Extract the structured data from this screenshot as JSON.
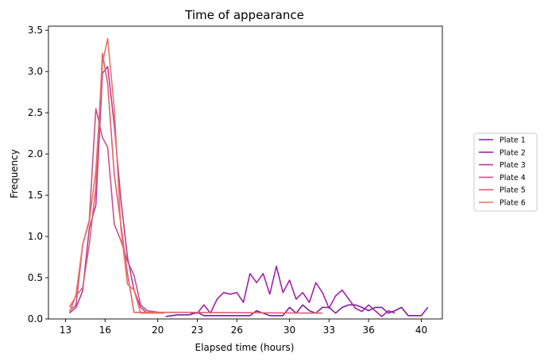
{
  "chart_data": {
    "type": "line",
    "title": "Time of appearance",
    "xlabel": "Elapsed time (hours)",
    "ylabel": "Frequency",
    "xlim": [
      11.7,
      41.6
    ],
    "ylim": [
      0,
      3.55
    ],
    "xticks": [
      13,
      16,
      20,
      23,
      26,
      30,
      33,
      36,
      40
    ],
    "yticks": [
      0.0,
      0.5,
      1.0,
      1.5,
      2.0,
      2.5,
      3.0,
      3.5
    ],
    "xtick_labels": [
      "13",
      "16",
      "20",
      "23",
      "26",
      "30",
      "33",
      "36",
      "40"
    ],
    "ytick_labels": [
      "0.0",
      "0.5",
      "1.0",
      "1.5",
      "2.0",
      "2.5",
      "3.0",
      "3.5"
    ],
    "grid": false,
    "legend_position": "right, outside plot",
    "series": [
      {
        "name": "Plate 1",
        "color": "#7e1fa0",
        "x": [
          20.6,
          21.5,
          22.4,
          23.0,
          23.5,
          24.0,
          24.5,
          25.0,
          25.5,
          26.0,
          26.5,
          27.0,
          27.5,
          28.0,
          28.5,
          29.0,
          29.5,
          30.0,
          30.5,
          31.0,
          31.5,
          32.0,
          32.5,
          33.0,
          33.5,
          34.0,
          34.5,
          35.0,
          35.5,
          36.0,
          36.5,
          37.0,
          37.5,
          38.0,
          38.5,
          39.0,
          39.5,
          40.0,
          40.5
        ],
        "y": [
          0.03,
          0.05,
          0.05,
          0.08,
          0.04,
          0.04,
          0.04,
          0.04,
          0.04,
          0.04,
          0.04,
          0.04,
          0.1,
          0.07,
          0.04,
          0.04,
          0.04,
          0.14,
          0.07,
          0.17,
          0.1,
          0.07,
          0.14,
          0.14,
          0.07,
          0.14,
          0.17,
          0.17,
          0.14,
          0.1,
          0.14,
          0.14,
          0.07,
          0.1,
          0.14,
          0.04,
          0.04,
          0.04,
          0.14
        ]
      },
      {
        "name": "Plate 2",
        "color": "#a422a8",
        "x": [
          22.5,
          23.0,
          23.5,
          24.0,
          24.5,
          25.0,
          25.5,
          26.0,
          26.5,
          27.0,
          27.5,
          28.0,
          28.5,
          29.0,
          29.5,
          30.0,
          30.5,
          31.0,
          31.5,
          32.0,
          32.5,
          33.0,
          33.5,
          34.0,
          34.5,
          35.0,
          35.5,
          36.0,
          36.5,
          37.0,
          37.5,
          38.0
        ],
        "y": [
          0.07,
          0.07,
          0.17,
          0.07,
          0.24,
          0.32,
          0.3,
          0.32,
          0.2,
          0.55,
          0.44,
          0.55,
          0.3,
          0.64,
          0.32,
          0.47,
          0.24,
          0.32,
          0.2,
          0.44,
          0.32,
          0.13,
          0.28,
          0.35,
          0.24,
          0.13,
          0.09,
          0.17,
          0.1,
          0.03,
          0.1,
          0.07
        ]
      },
      {
        "name": "Plate 3",
        "color": "#bb3b9a",
        "x": [
          13.3,
          13.8,
          14.3,
          14.8,
          15.3,
          15.8,
          16.2,
          16.7,
          17.2,
          17.7,
          18.2,
          18.7,
          19.2
        ],
        "y": [
          0.07,
          0.14,
          0.34,
          1.1,
          1.38,
          2.98,
          3.06,
          2.35,
          1.45,
          0.75,
          0.35,
          0.14,
          0.07
        ]
      },
      {
        "name": "Plate 4",
        "color": "#cc5090",
        "x": [
          13.3,
          13.8,
          14.3,
          14.8,
          15.3,
          15.8,
          16.2,
          16.7,
          17.2,
          17.7,
          18.2,
          18.7,
          19.2,
          20.5
        ],
        "y": [
          0.1,
          0.17,
          0.9,
          1.2,
          2.55,
          2.2,
          2.08,
          1.15,
          0.95,
          0.7,
          0.53,
          0.17,
          0.1,
          0.07
        ]
      },
      {
        "name": "Plate 5",
        "color": "#dd6070",
        "x": [
          13.3,
          13.8,
          14.3,
          14.8,
          15.3,
          15.8,
          16.2,
          16.7,
          17.2,
          17.7,
          18.2,
          18.7,
          19.2,
          22.0,
          32.5
        ],
        "y": [
          0.14,
          0.28,
          0.38,
          0.9,
          1.6,
          3.22,
          2.85,
          1.75,
          1.15,
          0.55,
          0.08,
          0.08,
          0.08,
          0.08,
          0.07
        ]
      },
      {
        "name": "Plate 6",
        "color": "#e8745e",
        "x": [
          13.3,
          13.8,
          14.3,
          14.8,
          15.3,
          15.8,
          16.2,
          16.7,
          17.2,
          17.7,
          18.2,
          18.7,
          19.2,
          19.8,
          20.5
        ],
        "y": [
          0.07,
          0.3,
          0.9,
          1.18,
          1.8,
          3.1,
          3.4,
          2.55,
          1.1,
          0.42,
          0.35,
          0.07,
          0.07,
          0.07,
          0.07
        ]
      }
    ]
  }
}
